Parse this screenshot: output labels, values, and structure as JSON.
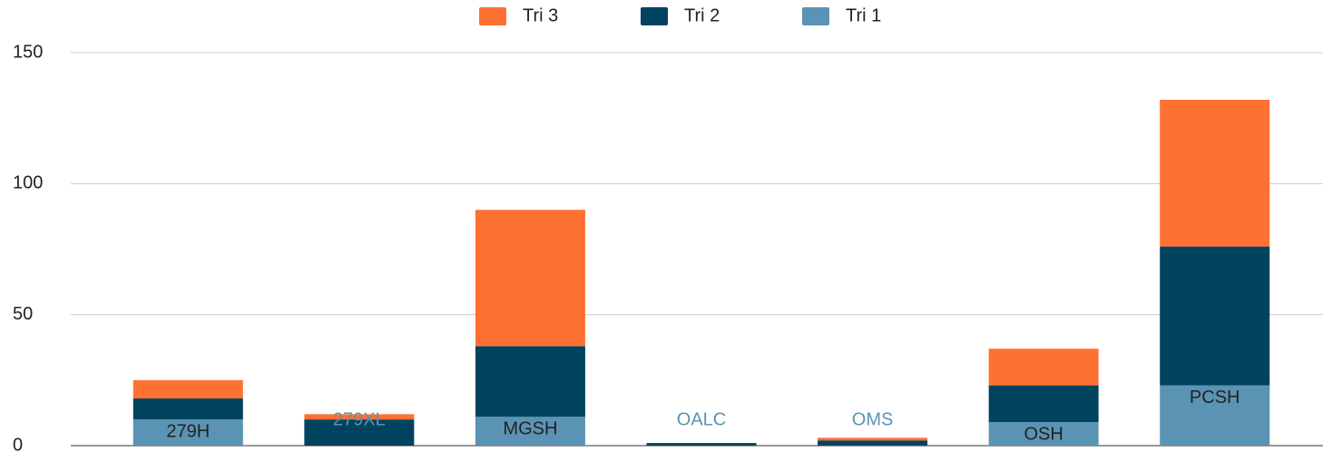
{
  "chart_data": {
    "type": "stacked_bar",
    "categories": [
      "279H",
      "279XL",
      "MGSH",
      "OALC",
      "OMS",
      "OSH",
      "PCSH"
    ],
    "series": [
      {
        "name": "Tri 1",
        "color": "#5b93b4",
        "values": [
          10,
          0,
          11,
          0,
          0,
          9,
          23
        ]
      },
      {
        "name": "Tri 2",
        "color": "#00435f",
        "values": [
          8,
          10,
          27,
          1,
          2,
          14,
          53
        ]
      },
      {
        "name": "Tri 3",
        "color": "#ff7033",
        "values": [
          7,
          2,
          52,
          0,
          1,
          14,
          56
        ]
      }
    ],
    "ylim": [
      0,
      150
    ],
    "yticks": [
      0,
      50,
      100,
      150
    ],
    "grid": true,
    "legend": "top"
  }
}
